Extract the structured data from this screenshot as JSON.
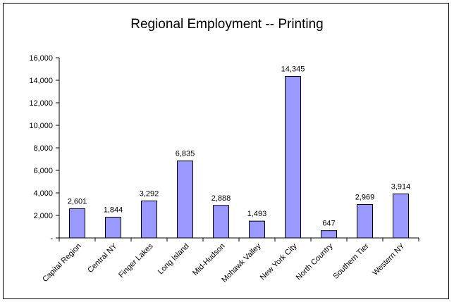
{
  "chart_data": {
    "type": "bar",
    "title": "Regional Employment -- Printing",
    "xlabel": "",
    "ylabel": "",
    "categories": [
      "Capital Region",
      "Central NY",
      "Finger Lakes",
      "Long Island",
      "Mid-Hudson",
      "Mohawk Valley",
      "New York City",
      "North Country",
      "Southern Tier",
      "Western NY"
    ],
    "values": [
      2601,
      1844,
      3292,
      6835,
      2888,
      1493,
      14345,
      647,
      2969,
      3914
    ],
    "data_labels": [
      "2,601",
      "1,844",
      "3,292",
      "6,835",
      "2,888",
      "1,493",
      "14,345",
      "647",
      "2,969",
      "3,914"
    ],
    "ylim": [
      0,
      16000
    ],
    "y_ticks": [
      0,
      2000,
      4000,
      6000,
      8000,
      10000,
      12000,
      14000,
      16000
    ],
    "y_tick_labels": [
      "-",
      "2,000",
      "4,000",
      "6,000",
      "8,000",
      "10,000",
      "12,000",
      "14,000",
      "16,000"
    ],
    "grid": false,
    "legend": "none",
    "bar_color": "#9999ff",
    "bar_border_color": "#000000"
  }
}
